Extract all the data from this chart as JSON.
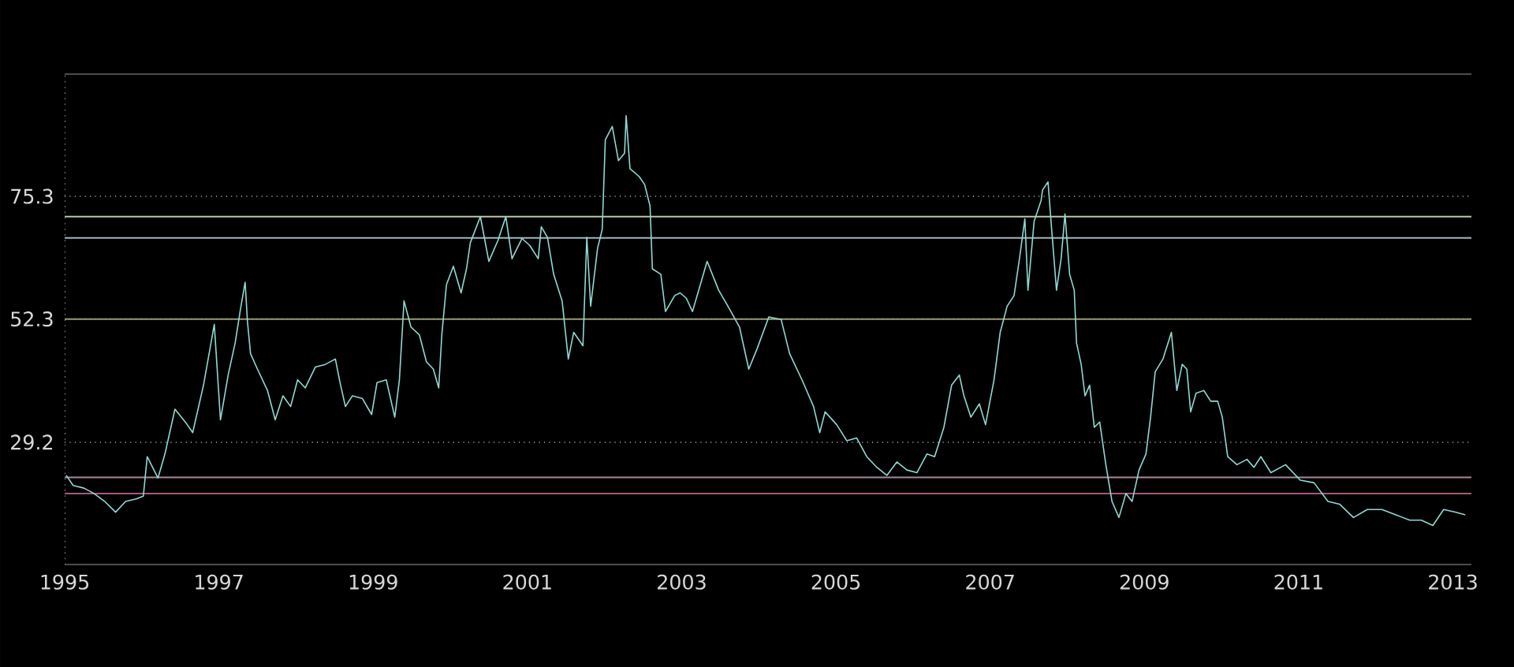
{
  "chart_data": {
    "type": "line",
    "x": [
      1995.02,
      1995.11,
      1995.25,
      1995.38,
      1995.52,
      1995.66,
      1995.79,
      1995.93,
      1996.02,
      1996.07,
      1996.21,
      1996.3,
      1996.43,
      1996.57,
      1996.66,
      1996.8,
      1996.94,
      1997.02,
      1997.12,
      1997.21,
      1997.28,
      1997.34,
      1997.37,
      1997.41,
      1997.5,
      1997.63,
      1997.73,
      1997.83,
      1997.93,
      1998.02,
      1998.12,
      1998.25,
      1998.38,
      1998.51,
      1998.57,
      1998.64,
      1998.73,
      1998.86,
      1998.98,
      1999.05,
      1999.17,
      1999.28,
      1999.34,
      1999.4,
      1999.49,
      1999.6,
      1999.69,
      1999.78,
      1999.85,
      1999.89,
      1999.95,
      2000.04,
      2000.14,
      2000.21,
      2000.26,
      2000.39,
      2000.5,
      2000.62,
      2000.72,
      2000.8,
      2000.93,
      2001.03,
      2001.14,
      2001.18,
      2001.26,
      2001.34,
      2001.45,
      2001.53,
      2001.6,
      2001.72,
      2001.77,
      2001.82,
      2001.91,
      2001.97,
      2002.01,
      2002.1,
      2002.18,
      2002.26,
      2002.28,
      2002.33,
      2002.45,
      2002.52,
      2002.59,
      2002.62,
      2002.73,
      2002.79,
      2002.91,
      2002.98,
      2003.06,
      2003.14,
      2003.33,
      2003.48,
      2003.6,
      2003.75,
      2003.87,
      2003.98,
      2004.13,
      2004.29,
      2004.4,
      2004.56,
      2004.71,
      2004.79,
      2004.86,
      2005.01,
      2005.14,
      2005.27,
      2005.4,
      2005.53,
      2005.66,
      2005.79,
      2005.92,
      2006.05,
      2006.18,
      2006.28,
      2006.4,
      2006.5,
      2006.6,
      2006.66,
      2006.75,
      2006.86,
      2006.94,
      2007.05,
      2007.13,
      2007.22,
      2007.31,
      2007.38,
      2007.45,
      2007.49,
      2007.57,
      2007.66,
      2007.68,
      2007.75,
      2007.8,
      2007.86,
      2007.92,
      2007.97,
      2008.03,
      2008.09,
      2008.12,
      2008.18,
      2008.23,
      2008.29,
      2008.35,
      2008.42,
      2008.5,
      2008.58,
      2008.67,
      2008.76,
      2008.84,
      2008.93,
      2009.02,
      2009.08,
      2009.14,
      2009.24,
      2009.35,
      2009.42,
      2009.49,
      2009.55,
      2009.6,
      2009.67,
      2009.77,
      2009.86,
      2009.95,
      2010.01,
      2010.08,
      2010.2,
      2010.33,
      2010.42,
      2010.51,
      2010.64,
      2010.83,
      2011.02,
      2011.2,
      2011.38,
      2011.53,
      2011.71,
      2011.89,
      2012.08,
      2012.26,
      2012.44,
      2012.59,
      2012.74,
      2012.88,
      2013.03,
      2013.16
    ],
    "values": [
      23.0,
      21.1,
      20.6,
      19.6,
      18.1,
      16.1,
      18.1,
      18.6,
      19.1,
      26.5,
      22.5,
      27.0,
      35.4,
      32.9,
      31.0,
      39.9,
      51.3,
      33.4,
      41.8,
      47.8,
      54.2,
      59.2,
      51.8,
      45.8,
      42.9,
      38.9,
      33.4,
      37.9,
      35.9,
      40.9,
      39.4,
      43.3,
      43.8,
      44.8,
      40.4,
      35.9,
      37.9,
      37.4,
      34.4,
      40.4,
      40.9,
      33.9,
      40.9,
      55.7,
      50.8,
      49.3,
      44.3,
      42.9,
      39.4,
      49.3,
      58.7,
      62.2,
      57.2,
      61.7,
      66.6,
      71.5,
      63.1,
      67.1,
      71.5,
      63.6,
      67.4,
      66.1,
      63.6,
      69.6,
      67.6,
      60.7,
      55.7,
      44.8,
      49.8,
      47.3,
      67.6,
      54.7,
      65.6,
      69.1,
      85.9,
      88.4,
      82.0,
      83.4,
      90.4,
      80.5,
      79.0,
      77.5,
      73.5,
      61.7,
      60.7,
      53.7,
      56.7,
      57.2,
      56.2,
      53.7,
      63.1,
      57.7,
      54.7,
      50.8,
      42.9,
      46.8,
      52.7,
      52.2,
      45.8,
      40.9,
      35.9,
      31.0,
      34.9,
      32.5,
      29.5,
      30.0,
      26.5,
      24.5,
      23.0,
      25.5,
      24.0,
      23.5,
      27.0,
      26.5,
      32.0,
      39.9,
      41.8,
      37.9,
      33.9,
      36.4,
      32.5,
      40.9,
      49.8,
      54.7,
      56.7,
      63.6,
      71.1,
      57.7,
      70.6,
      74.5,
      76.5,
      78.0,
      68.6,
      57.7,
      63.6,
      72.0,
      60.7,
      57.7,
      47.8,
      43.8,
      37.9,
      39.9,
      32.0,
      33.0,
      25.0,
      18.1,
      15.1,
      19.6,
      18.1,
      24.0,
      27.0,
      33.9,
      42.4,
      44.8,
      49.8,
      38.9,
      43.8,
      42.9,
      34.9,
      38.4,
      38.9,
      36.9,
      36.9,
      33.9,
      26.5,
      25.0,
      26.0,
      24.5,
      26.5,
      23.5,
      25.0,
      22.1,
      21.6,
      18.1,
      17.6,
      15.1,
      16.6,
      16.6,
      15.6,
      14.6,
      14.6,
      13.6,
      16.6,
      16.1,
      15.6
    ],
    "color": "#8fd9d2",
    "xlim": [
      1995,
      2013.24
    ],
    "ylim": [
      6.2,
      98.3
    ],
    "xticks": [
      1995,
      1997,
      1999,
      2001,
      2003,
      2005,
      2007,
      2009,
      2011,
      2013
    ],
    "yticks": [
      29.2,
      52.3,
      75.3
    ],
    "grid": "y",
    "ref_lines": [
      {
        "axis": "y",
        "value": 71.5,
        "color": "#b9c9a6"
      },
      {
        "axis": "y",
        "value": 67.5,
        "color": "#a5b4bd"
      },
      {
        "axis": "y",
        "value": 52.3,
        "color": "#9a9878"
      },
      {
        "axis": "y",
        "value": 22.6,
        "color": "#a88a9c"
      },
      {
        "axis": "y",
        "value": 19.6,
        "color": "#a8587a"
      }
    ]
  }
}
